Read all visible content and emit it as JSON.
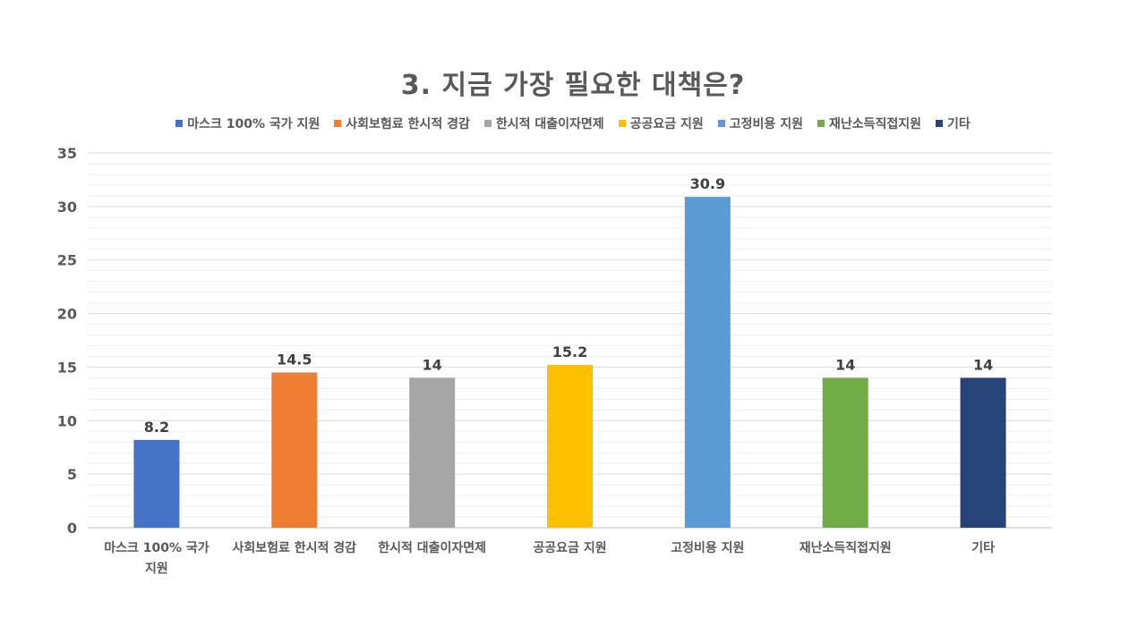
{
  "chart_data": {
    "type": "bar",
    "title": "3. 지금 가장 필요한 대책은?",
    "xlabel": "",
    "ylabel": "",
    "ylim": [
      0,
      35
    ],
    "y_ticks": [
      "0",
      "5",
      "10",
      "15",
      "20",
      "25",
      "30",
      "35"
    ],
    "grid": true,
    "legend_position": "top",
    "categories": [
      "마스크 100% 국가 지원",
      "사회보험료 한시적 경감",
      "한시적 대출이자면제",
      "공공요금 지원",
      "고정비용 지원",
      "재난소득직접지원",
      "기타"
    ],
    "category_label_lines": [
      [
        "마스크 100% 국가",
        "지원"
      ],
      [
        "사회보험료 한시적 경감"
      ],
      [
        "한시적 대출이자면제"
      ],
      [
        "공공요금 지원"
      ],
      [
        "고정비용 지원"
      ],
      [
        "재난소득직접지원"
      ],
      [
        "기타"
      ]
    ],
    "values": [
      8.2,
      14.5,
      14,
      15.2,
      30.9,
      14,
      14
    ],
    "data_labels": [
      "8.2",
      "14.5",
      "14",
      "15.2",
      "30.9",
      "14",
      "14"
    ],
    "colors": [
      "#4472C4",
      "#ED7D31",
      "#A5A5A5",
      "#FFC000",
      "#5B9BD5",
      "#70AD47",
      "#264478"
    ]
  }
}
